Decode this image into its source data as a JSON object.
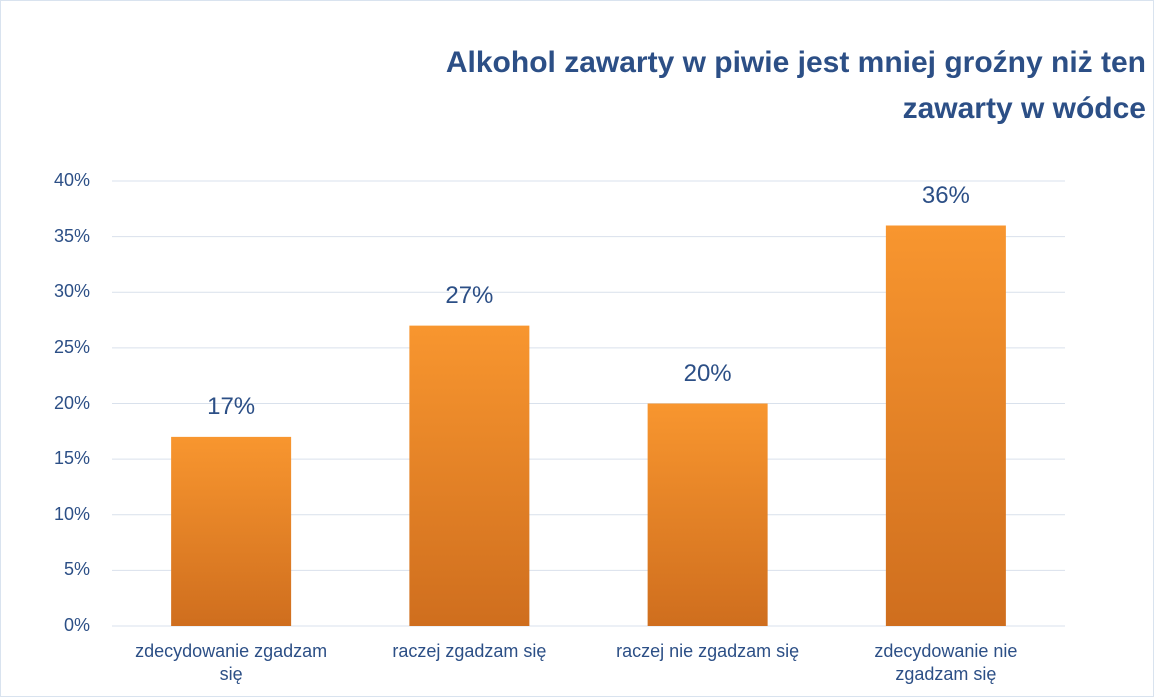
{
  "chart_data": {
    "type": "bar",
    "title": "Alkohol zawarty w piwie jest mniej groźny niż ten zawarty w wódce",
    "categories": [
      "zdecydowanie zgadzam się",
      "raczej zgadzam się",
      "raczej nie zgadzam się",
      "zdecydowanie nie zgadzam się"
    ],
    "values": [
      17,
      27,
      20,
      36
    ],
    "value_labels": [
      "17%",
      "27%",
      "20%",
      "36%"
    ],
    "color": "#f28c28",
    "ylim": [
      0,
      40
    ],
    "yticks": [
      {
        "value": 0,
        "label": "0%"
      },
      {
        "value": 5,
        "label": "5%"
      },
      {
        "value": 10,
        "label": "10%"
      },
      {
        "value": 15,
        "label": "15%"
      },
      {
        "value": 20,
        "label": "20%"
      },
      {
        "value": 25,
        "label": "25%"
      },
      {
        "value": 30,
        "label": "30%"
      },
      {
        "value": 35,
        "label": "35%"
      },
      {
        "value": 40,
        "label": "40%"
      }
    ],
    "grid": true
  }
}
